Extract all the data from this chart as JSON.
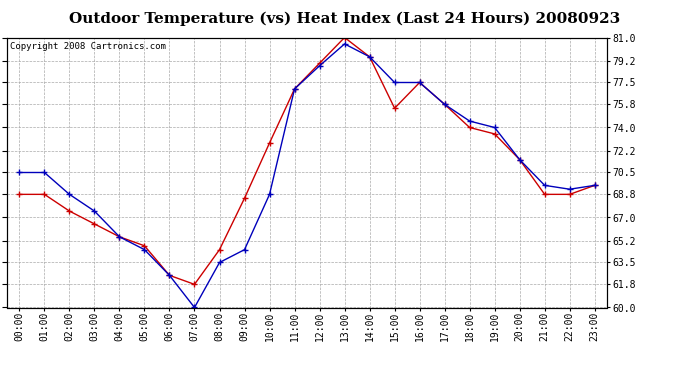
{
  "title": "Outdoor Temperature (vs) Heat Index (Last 24 Hours) 20080923",
  "copyright": "Copyright 2008 Cartronics.com",
  "x_labels": [
    "00:00",
    "01:00",
    "02:00",
    "03:00",
    "04:00",
    "05:00",
    "06:00",
    "07:00",
    "08:00",
    "09:00",
    "10:00",
    "11:00",
    "12:00",
    "13:00",
    "14:00",
    "15:00",
    "16:00",
    "17:00",
    "18:00",
    "19:00",
    "20:00",
    "21:00",
    "22:00",
    "23:00"
  ],
  "temp_blue": [
    70.5,
    70.5,
    68.8,
    67.5,
    65.5,
    64.5,
    62.5,
    60.0,
    63.5,
    64.5,
    68.8,
    77.0,
    78.8,
    80.5,
    79.5,
    77.5,
    77.5,
    75.8,
    74.5,
    74.0,
    71.5,
    69.5,
    69.2,
    69.5
  ],
  "heat_red": [
    68.8,
    68.8,
    67.5,
    66.5,
    65.5,
    64.8,
    62.5,
    61.8,
    64.5,
    68.5,
    72.8,
    77.0,
    79.0,
    81.0,
    79.5,
    75.5,
    77.5,
    75.8,
    74.0,
    73.5,
    71.5,
    68.8,
    68.8,
    69.5
  ],
  "ylim": [
    60.0,
    81.0
  ],
  "yticks": [
    60.0,
    61.8,
    63.5,
    65.2,
    67.0,
    68.8,
    70.5,
    72.2,
    74.0,
    75.8,
    77.5,
    79.2,
    81.0
  ],
  "ytick_labels": [
    "60.0",
    "61.8",
    "63.5",
    "65.2",
    "67.0",
    "68.8",
    "70.5",
    "72.2",
    "74.0",
    "75.8",
    "77.5",
    "79.2",
    "81.0"
  ],
  "blue_color": "#0000bb",
  "red_color": "#cc0000",
  "grid_color": "#aaaaaa",
  "bg_color": "#ffffff",
  "title_fontsize": 11,
  "copyright_fontsize": 6.5,
  "tick_fontsize": 7,
  "marker_size": 4
}
